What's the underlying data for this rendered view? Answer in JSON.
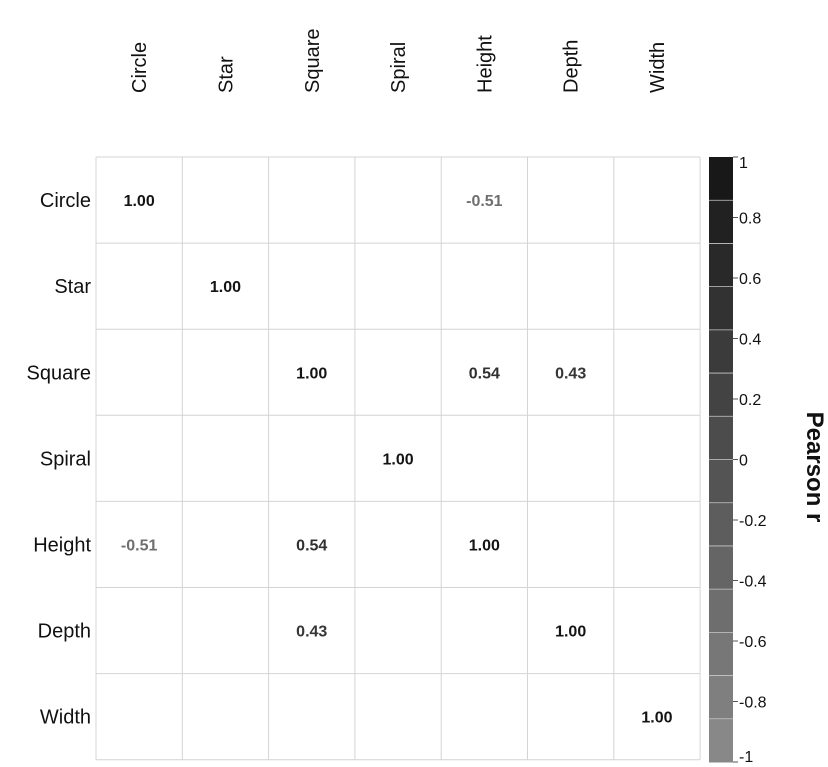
{
  "chart_data": {
    "type": "heatmap",
    "title": "",
    "row_labels": [
      "Circle",
      "Star",
      "Square",
      "Spiral",
      "Height",
      "Depth",
      "Width"
    ],
    "col_labels": [
      "Circle",
      "Star",
      "Square",
      "Spiral",
      "Height",
      "Depth",
      "Width"
    ],
    "cells": [
      {
        "row": 0,
        "col": 0,
        "value": 1.0,
        "label": "1.00"
      },
      {
        "row": 0,
        "col": 4,
        "value": -0.51,
        "label": "-0.51"
      },
      {
        "row": 1,
        "col": 1,
        "value": 1.0,
        "label": "1.00"
      },
      {
        "row": 2,
        "col": 2,
        "value": 1.0,
        "label": "1.00"
      },
      {
        "row": 2,
        "col": 4,
        "value": 0.54,
        "label": "0.54"
      },
      {
        "row": 2,
        "col": 5,
        "value": 0.43,
        "label": "0.43"
      },
      {
        "row": 3,
        "col": 3,
        "value": 1.0,
        "label": "1.00"
      },
      {
        "row": 4,
        "col": 0,
        "value": -0.51,
        "label": "-0.51"
      },
      {
        "row": 4,
        "col": 2,
        "value": 0.54,
        "label": "0.54"
      },
      {
        "row": 4,
        "col": 4,
        "value": 1.0,
        "label": "1.00"
      },
      {
        "row": 5,
        "col": 2,
        "value": 0.43,
        "label": "0.43"
      },
      {
        "row": 5,
        "col": 5,
        "value": 1.0,
        "label": "1.00"
      },
      {
        "row": 6,
        "col": 6,
        "value": 1.0,
        "label": "1.00"
      }
    ],
    "colorbar": {
      "title": "Pearson r",
      "range": [
        -1,
        1
      ],
      "ticks": [
        "1",
        "0.8",
        "0.6",
        "0.4",
        "0.2",
        "0",
        "-0.2",
        "-0.4",
        "-0.6",
        "-0.8",
        "-1"
      ],
      "tick_values": [
        1,
        0.8,
        0.6,
        0.4,
        0.2,
        0,
        -0.2,
        -0.4,
        -0.6,
        -0.8,
        -1
      ],
      "color_low": "#8c8c8c",
      "color_high": "#141414",
      "bands": 14,
      "placement": "right"
    },
    "grid": true
  }
}
